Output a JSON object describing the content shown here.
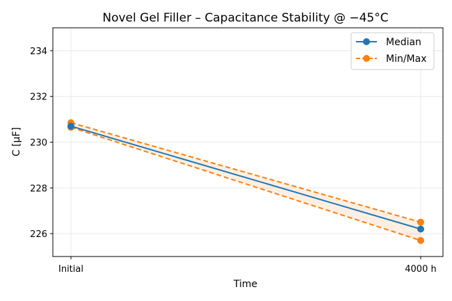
{
  "chart_data": {
    "type": "line",
    "title": "Novel Gel Filler – Capacitance Stability @ −45°C",
    "xlabel": "Time",
    "ylabel": "C [µF]",
    "categories": [
      "Initial",
      "4000 h"
    ],
    "ylim": [
      225,
      235
    ],
    "yticks": [
      226,
      228,
      230,
      232,
      234
    ],
    "grid": true,
    "legend_position": "top-right",
    "series": [
      {
        "name": "Median",
        "values": [
          230.7,
          226.2
        ],
        "color": "#1f77b4",
        "style": "solid"
      },
      {
        "name": "Min/Max",
        "min": [
          230.65,
          225.7
        ],
        "max": [
          230.85,
          226.5
        ],
        "color": "#ff7f0e",
        "style": "dashed"
      }
    ]
  }
}
